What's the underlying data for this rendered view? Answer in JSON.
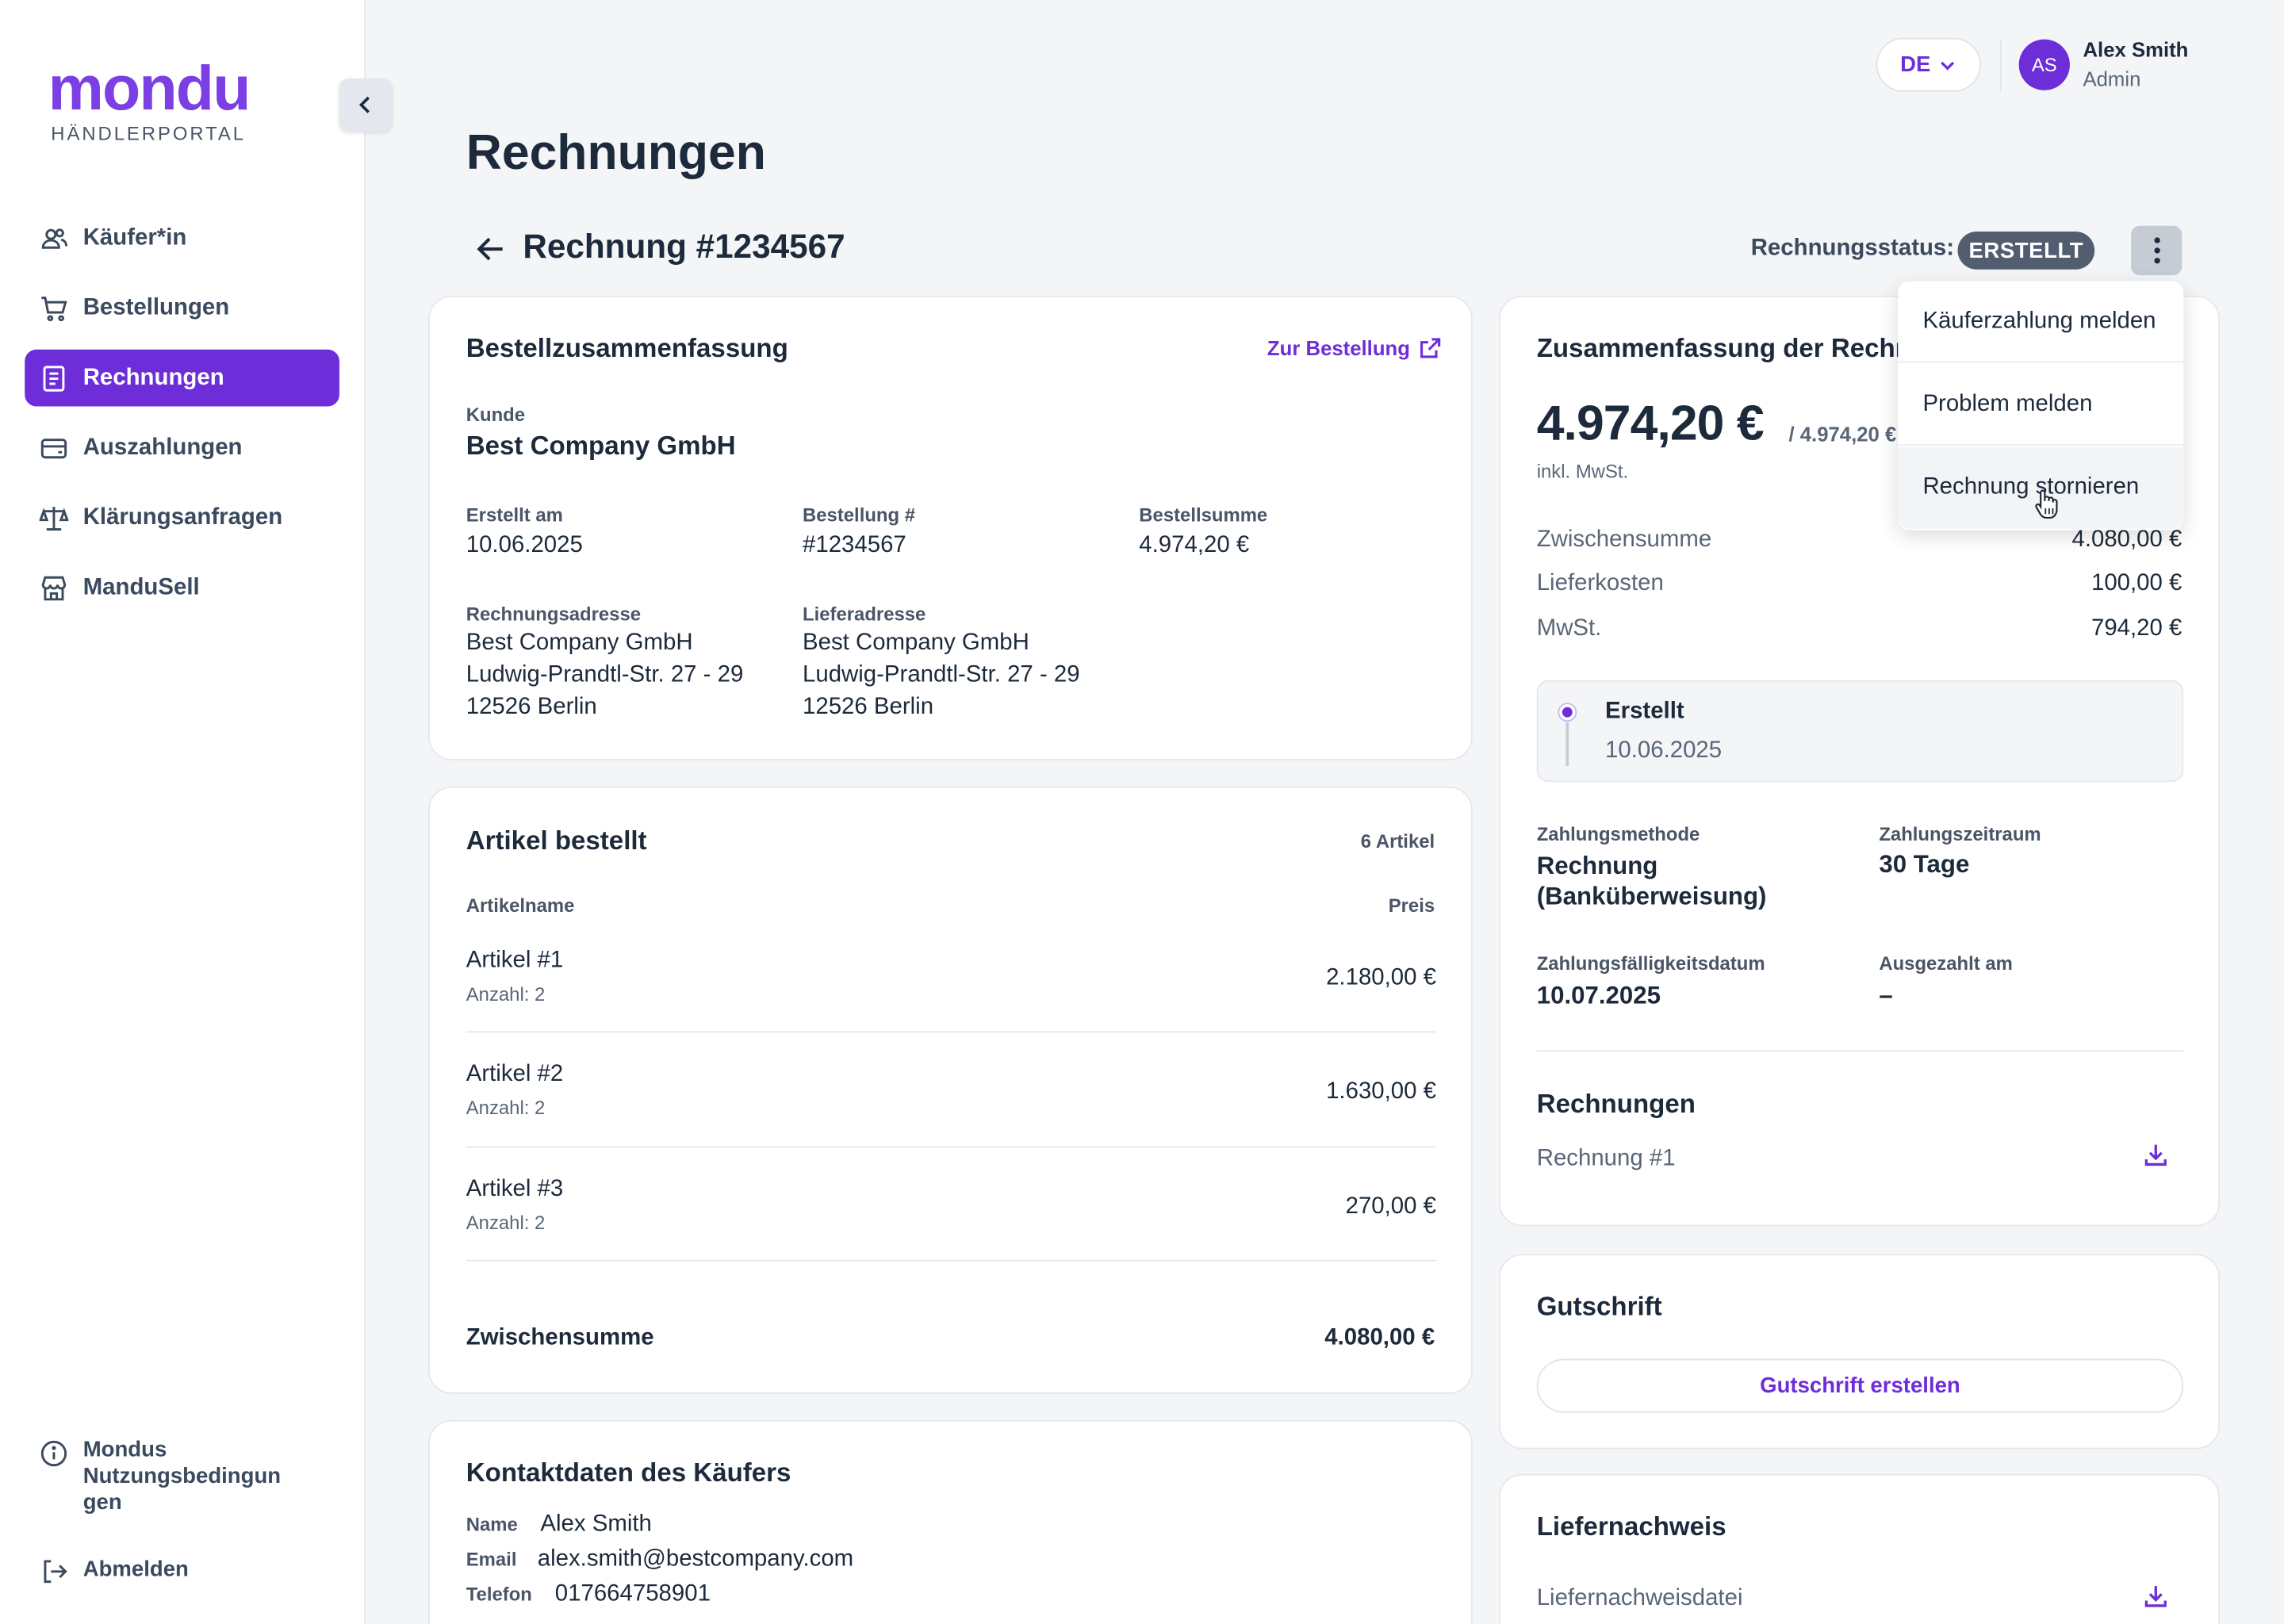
{
  "brand": {
    "name": "mondu",
    "subtitle": "HÄNDLERPORTAL"
  },
  "sidebar": {
    "items": [
      {
        "label": "Käufer*in",
        "icon": "users-icon"
      },
      {
        "label": "Bestellungen",
        "icon": "cart-icon"
      },
      {
        "label": "Rechnungen",
        "icon": "invoice-icon",
        "active": true
      },
      {
        "label": "Auszahlungen",
        "icon": "wallet-icon"
      },
      {
        "label": "Klärungsanfragen",
        "icon": "scale-icon"
      },
      {
        "label": "ManduSell",
        "icon": "store-icon"
      }
    ],
    "footer": {
      "terms_line1": "Mondus",
      "terms_line2": "Nutzungsbedingun",
      "terms_line3": "gen",
      "logout": "Abmelden"
    }
  },
  "header": {
    "language": "DE",
    "user": {
      "initials": "AS",
      "name": "Alex Smith",
      "role": "Admin"
    }
  },
  "page": {
    "title": "Rechnungen",
    "invoice_title": "Rechnung #1234567",
    "status_label": "Rechnungsstatus:",
    "status_value": "ERSTELLT"
  },
  "menu": {
    "items": [
      "Käuferzahlung melden",
      "Problem melden",
      "Rechnung stornieren"
    ]
  },
  "order_summary": {
    "title": "Bestellzusammenfassung",
    "link": "Zur Bestellung",
    "customer_label": "Kunde",
    "customer": "Best Company GmbH",
    "created_label": "Erstellt am",
    "created": "10.06.2025",
    "order_no_label": "Bestellung #",
    "order_no": "#1234567",
    "order_sum_label": "Bestellsumme",
    "order_sum": "4.974,20 €",
    "billing_label": "Rechnungsadresse",
    "billing": [
      "Best Company GmbH",
      "Ludwig-Prandtl-Str. 27 - 29",
      "12526 Berlin"
    ],
    "shipping_label": "Lieferadresse",
    "shipping": [
      "Best Company GmbH",
      "Ludwig-Prandtl-Str. 27 - 29",
      "12526 Berlin"
    ]
  },
  "items_card": {
    "title": "Artikel bestellt",
    "count": "6 Artikel",
    "col_name": "Artikelname",
    "col_price": "Preis",
    "rows": [
      {
        "name": "Artikel #1",
        "qty": "Anzahl: 2",
        "price": "2.180,00 €"
      },
      {
        "name": "Artikel #2",
        "qty": "Anzahl: 2",
        "price": "1.630,00 €"
      },
      {
        "name": "Artikel #3",
        "qty": "Anzahl: 2",
        "price": "270,00 €"
      }
    ],
    "subtotal_label": "Zwischensumme",
    "subtotal": "4.080,00 €"
  },
  "contact": {
    "title": "Kontaktdaten des Käufers",
    "name_label": "Name",
    "name": "Alex Smith",
    "email_label": "Email",
    "email": "alex.smith@bestcompany.com",
    "phone_label": "Telefon",
    "phone": "017664758901"
  },
  "invoice_summary": {
    "title": "Zusammenfassung der Rechnung",
    "total": "4.974,20 €",
    "total_of": "/ 4.974,20 €",
    "vat_note": "inkl. MwSt.",
    "lines": [
      {
        "label": "Zwischensumme",
        "value": "4.080,00 €"
      },
      {
        "label": "Lieferkosten",
        "value": "100,00 €"
      },
      {
        "label": "MwSt.",
        "value": "794,20 €"
      }
    ],
    "timeline": {
      "status": "Erstellt",
      "date": "10.06.2025"
    },
    "payment_method_label": "Zahlungsmethode",
    "payment_method_1": "Rechnung",
    "payment_method_2": "(Banküberweisung)",
    "payment_term_label": "Zahlungszeitraum",
    "payment_term": "30 Tage",
    "due_label": "Zahlungsfälligkeitsdatum",
    "due": "10.07.2025",
    "paid_label": "Ausgezahlt am",
    "paid": "–",
    "invoices_title": "Rechnungen",
    "invoice_file": "Rechnung #1"
  },
  "credit": {
    "title": "Gutschrift",
    "button": "Gutschrift erstellen"
  },
  "delivery": {
    "title": "Liefernachweis",
    "file": "Liefernachweisdatei"
  },
  "colors": {
    "accent": "#6d2ed9",
    "badge": "#525e70",
    "background": "#f3f5f7"
  }
}
